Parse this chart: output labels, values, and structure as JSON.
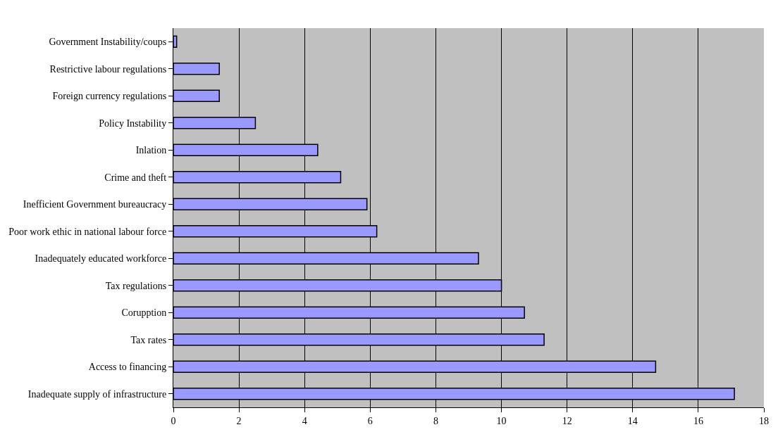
{
  "chart_data": {
    "type": "bar",
    "orientation": "horizontal",
    "categories": [
      "Government Instability/coups",
      "Restrictive labour regulations",
      "Foreign currency regulations",
      "Policy Instability",
      "Inlation",
      "Crime and theft",
      "Inefficient Government bureaucracy",
      "Poor work ethic in national labour force",
      "Inadequately educated workforce",
      "Tax regulations",
      "Corupption",
      "Tax rates",
      "Access to financing",
      "Inadequate supply of infrastructure"
    ],
    "values": [
      0.1,
      1.4,
      1.4,
      2.5,
      4.4,
      5.1,
      5.9,
      6.2,
      9.3,
      10.0,
      10.7,
      11.3,
      14.7,
      17.1
    ],
    "color": "#9999ff",
    "xlim": [
      0,
      18
    ],
    "xticks": [
      0,
      2,
      4,
      6,
      8,
      10,
      12,
      14,
      16,
      18
    ],
    "grid": "x"
  }
}
